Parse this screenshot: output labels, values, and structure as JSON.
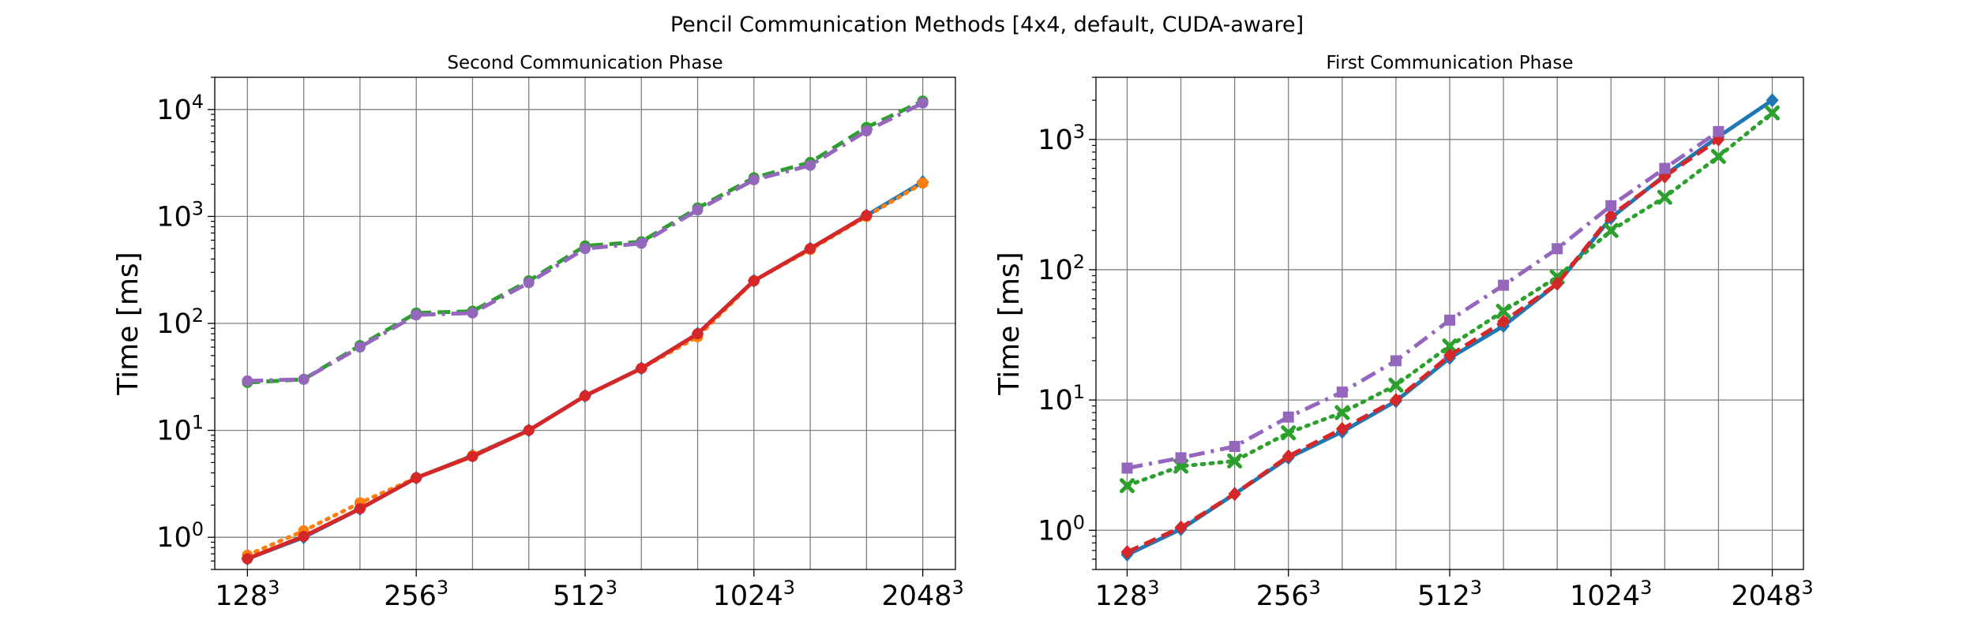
{
  "figure": {
    "suptitle": "Pencil Communication Methods [4x4, default, CUDA-aware]"
  },
  "chart_data": [
    {
      "type": "line",
      "title": "Second Communication Phase",
      "xlabel": "",
      "ylabel": "Time [ms]",
      "yscale": "log",
      "ylim": [
        0.5,
        20000
      ],
      "grid": true,
      "x": [
        1,
        2,
        3,
        4,
        5,
        6,
        7,
        8,
        9,
        10,
        11,
        12,
        13
      ],
      "xtick_positions": [
        1,
        4,
        7,
        10,
        13
      ],
      "xtick_labels": [
        {
          "base": "128",
          "exp": "3"
        },
        {
          "base": "256",
          "exp": "3"
        },
        {
          "base": "512",
          "exp": "3"
        },
        {
          "base": "1024",
          "exp": "3"
        },
        {
          "base": "2048",
          "exp": "3"
        }
      ],
      "ytick_labels": [
        {
          "value": 1,
          "base": "10",
          "exp": "0"
        },
        {
          "value": 10,
          "base": "10",
          "exp": "1"
        },
        {
          "value": 100,
          "base": "10",
          "exp": "2"
        },
        {
          "value": 1000,
          "base": "10",
          "exp": "3"
        },
        {
          "value": 10000,
          "base": "10",
          "exp": "4"
        }
      ],
      "series": [
        {
          "color": "#1f77b4",
          "linestyle": "solid",
          "marker": "diamond",
          "values": [
            0.63,
            1.0,
            1.85,
            3.6,
            5.8,
            10,
            21,
            38,
            80,
            250,
            500,
            1020,
            2100
          ]
        },
        {
          "color": "#ff7f0e",
          "linestyle": "dotted",
          "marker": "circle",
          "values": [
            0.68,
            1.15,
            2.1,
            3.6,
            5.8,
            10,
            21,
            38,
            75,
            250,
            490,
            1000,
            2050
          ]
        },
        {
          "color": "#2ca02c",
          "linestyle": "dashed",
          "marker": "circle",
          "values": [
            28,
            30,
            62,
            125,
            130,
            250,
            530,
            580,
            1200,
            2300,
            3200,
            6800,
            12000
          ]
        },
        {
          "color": "#d62728",
          "linestyle": "solid",
          "marker": "circle",
          "values": [
            0.63,
            1.02,
            1.85,
            3.6,
            5.7,
            10,
            21,
            38,
            80,
            250,
            500,
            1020,
            null
          ]
        },
        {
          "color": "#9467bd",
          "linestyle": "dashdot",
          "marker": "circle",
          "values": [
            29,
            30,
            60,
            120,
            125,
            240,
            500,
            560,
            1150,
            2200,
            3000,
            6300,
            11500
          ]
        }
      ]
    },
    {
      "type": "line",
      "title": "First Communication Phase",
      "xlabel": "",
      "ylabel": "Time [ms]",
      "yscale": "log",
      "ylim": [
        0.5,
        3000
      ],
      "grid": true,
      "x": [
        1,
        2,
        3,
        4,
        5,
        6,
        7,
        8,
        9,
        10,
        11,
        12,
        13
      ],
      "xtick_positions": [
        1,
        4,
        7,
        10,
        13
      ],
      "xtick_labels": [
        {
          "base": "128",
          "exp": "3"
        },
        {
          "base": "256",
          "exp": "3"
        },
        {
          "base": "512",
          "exp": "3"
        },
        {
          "base": "1024",
          "exp": "3"
        },
        {
          "base": "2048",
          "exp": "3"
        }
      ],
      "ytick_labels": [
        {
          "value": 1,
          "base": "10",
          "exp": "0"
        },
        {
          "value": 10,
          "base": "10",
          "exp": "1"
        },
        {
          "value": 100,
          "base": "10",
          "exp": "2"
        },
        {
          "value": 1000,
          "base": "10",
          "exp": "3"
        }
      ],
      "series": [
        {
          "color": "#1f77b4",
          "linestyle": "solid",
          "marker": "diamond",
          "values": [
            0.65,
            1.02,
            1.9,
            3.6,
            5.7,
            9.8,
            21,
            37,
            78,
            250,
            530,
            1050,
            2000
          ]
        },
        {
          "color": "#2ca02c",
          "linestyle": "dotted",
          "marker": "x",
          "values": [
            2.2,
            3.1,
            3.4,
            5.6,
            8,
            13,
            26,
            48,
            88,
            200,
            360,
            740,
            1600
          ]
        },
        {
          "color": "#d62728",
          "linestyle": "dashed",
          "marker": "diamond",
          "values": [
            0.68,
            1.05,
            1.9,
            3.7,
            6,
            10,
            22,
            40,
            78,
            260,
            520,
            1000,
            null
          ]
        },
        {
          "color": "#9467bd",
          "linestyle": "dashdot",
          "marker": "square",
          "values": [
            3.0,
            3.6,
            4.4,
            7.4,
            11.5,
            20,
            41,
            76,
            145,
            310,
            600,
            1150,
            null
          ]
        }
      ]
    }
  ]
}
